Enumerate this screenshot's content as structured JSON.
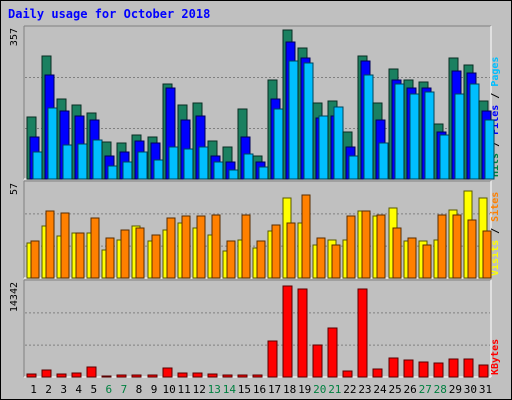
{
  "chart_data": {
    "type": "bar",
    "title": "Daily usage for October 2018",
    "days": [
      "1",
      "2",
      "3",
      "4",
      "5",
      "6",
      "7",
      "8",
      "9",
      "10",
      "11",
      "12",
      "13",
      "14",
      "15",
      "16",
      "17",
      "18",
      "19",
      "20",
      "21",
      "22",
      "23",
      "24",
      "25",
      "26",
      "27",
      "28",
      "29",
      "30",
      "31"
    ],
    "weekend_days": [
      "6",
      "7",
      "13",
      "14",
      "20",
      "21",
      "27",
      "28"
    ],
    "panels": [
      {
        "name": "hits-files-pages",
        "ymax": 357,
        "ymax_label": "357",
        "side_labels": [
          {
            "text": "Pages",
            "color": "#00bfff"
          },
          {
            "text": " / ",
            "color": "#000000"
          },
          {
            "text": "Files",
            "color": "#0000ff"
          },
          {
            "text": " / ",
            "color": "#000000"
          },
          {
            "text": "Hits",
            "color": "#008040"
          }
        ],
        "series": [
          {
            "name": "Hits",
            "color": "#1a8060",
            "values": [
              146,
              290,
              190,
              175,
              155,
              88,
              85,
              105,
              100,
              225,
              175,
              180,
              90,
              75,
              165,
              55,
              235,
              352,
              310,
              180,
              185,
              110,
              290,
              180,
              260,
              235,
              230,
              130,
              285,
              270,
              185
            ]
          },
          {
            "name": "Files",
            "color": "#0000ff",
            "values": [
              100,
              245,
              160,
              150,
              140,
              55,
              65,
              90,
              85,
              215,
              140,
              150,
              55,
              40,
              100,
              40,
              190,
              325,
              285,
              145,
              150,
              75,
              280,
              140,
              235,
              215,
              215,
              112,
              255,
              250,
              160
            ]
          },
          {
            "name": "Pages",
            "color": "#00bfff",
            "values": [
              65,
              168,
              80,
              82,
              92,
              30,
              40,
              65,
              45,
              75,
              70,
              75,
              40,
              22,
              60,
              28,
              165,
              280,
              275,
              150,
              170,
              55,
              245,
              85,
              225,
              200,
              205,
              105,
              200,
              225,
              140
            ]
          }
        ]
      },
      {
        "name": "visits-sites",
        "ymax": 57,
        "ymax_label": "57",
        "side_labels": [
          {
            "text": "Sites",
            "color": "#ff8000"
          },
          {
            "text": " / ",
            "color": "#000000"
          },
          {
            "text": "Visits",
            "color": "#ffff00"
          }
        ],
        "series": [
          {
            "name": "Visits",
            "color": "#ffff00",
            "values": [
              21,
              31,
              25,
              27,
              27,
              17,
              23,
              31,
              22,
              29,
              33,
              30,
              26,
              16,
              23,
              18,
              28,
              48,
              33,
              20,
              23,
              23,
              40,
              37,
              42,
              22,
              22,
              23,
              41,
              52,
              48
            ]
          },
          {
            "name": "Sites",
            "color": "#ff8000",
            "values": [
              22,
              40,
              39,
              27,
              36,
              24,
              29,
              30,
              26,
              36,
              37,
              37,
              38,
              22,
              38,
              22,
              32,
              33,
              50,
              24,
              20,
              37,
              40,
              38,
              30,
              24,
              20,
              38,
              38,
              35,
              28
            ]
          }
        ]
      },
      {
        "name": "kbytes",
        "ymax": 14342,
        "ymax_label": "14342",
        "side_labels": [
          {
            "text": "KBytes",
            "color": "#ff0000"
          }
        ],
        "series": [
          {
            "name": "KBytes",
            "color": "#ff0000",
            "values": [
              520,
              1100,
              520,
              600,
              1450,
              130,
              240,
              280,
              320,
              1350,
              560,
              560,
              390,
              290,
              230,
              230,
              5500,
              13700,
              13350,
              4900,
              7400,
              930,
              13250,
              1250,
              2900,
              2600,
              2250,
              2050,
              2700,
              2700,
              1750
            ]
          }
        ]
      }
    ]
  }
}
